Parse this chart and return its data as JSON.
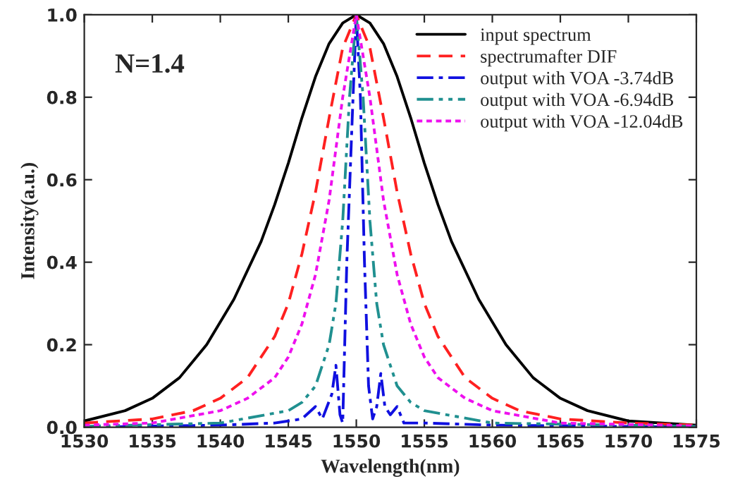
{
  "chart_data": {
    "type": "line",
    "xlabel": "Wavelength(nm)",
    "ylabel": "Intensity(a.u.)",
    "xlim": [
      1530,
      1575
    ],
    "xticks": [
      1530,
      1535,
      1540,
      1545,
      1550,
      1555,
      1560,
      1565,
      1570,
      1575
    ],
    "ylim": [
      0,
      1.0
    ],
    "yticks": [
      {
        "value": 0,
        "label": "0.0"
      },
      {
        "value": 0.2,
        "label": "0.2"
      },
      {
        "value": 0.4,
        "label": "0.4"
      },
      {
        "value": 0.6,
        "label": "0.6"
      },
      {
        "value": 0.8,
        "label": "0.8"
      },
      {
        "value": 1.0,
        "label": "1.0"
      }
    ],
    "grid": false,
    "legend": "top right",
    "marker": "none",
    "annotations": [
      "N=1.4"
    ],
    "series": [
      {
        "name": "input spectrum",
        "color": "#000000",
        "line_style": "solid",
        "x": [
          1530,
          1533,
          1535,
          1537,
          1539,
          1541,
          1543,
          1544,
          1545,
          1546,
          1547,
          1548,
          1549,
          1550,
          1551,
          1552,
          1553,
          1554,
          1555,
          1556,
          1557,
          1559,
          1561,
          1563,
          1565,
          1567,
          1570,
          1575
        ],
        "values": [
          0.015,
          0.04,
          0.07,
          0.12,
          0.2,
          0.31,
          0.45,
          0.54,
          0.64,
          0.75,
          0.85,
          0.93,
          0.98,
          1.0,
          0.98,
          0.93,
          0.85,
          0.75,
          0.64,
          0.54,
          0.45,
          0.31,
          0.2,
          0.12,
          0.07,
          0.04,
          0.015,
          0.005
        ]
      },
      {
        "name": "spectrumafter DIF",
        "color": "#ff2020",
        "line_style": "dashed",
        "x": [
          1530,
          1535,
          1538,
          1540,
          1542,
          1544,
          1545,
          1546,
          1547,
          1548,
          1549,
          1550,
          1551,
          1552,
          1553,
          1554,
          1555,
          1556,
          1558,
          1560,
          1562,
          1565,
          1570,
          1575
        ],
        "values": [
          0.01,
          0.02,
          0.04,
          0.07,
          0.12,
          0.22,
          0.3,
          0.42,
          0.57,
          0.75,
          0.92,
          1.0,
          0.92,
          0.75,
          0.57,
          0.42,
          0.3,
          0.22,
          0.12,
          0.07,
          0.04,
          0.02,
          0.01,
          0.005
        ]
      },
      {
        "name": "output with VOA -3.74dB",
        "color": "#1010e0",
        "line_style": "dashdot",
        "x": [
          1530,
          1540,
          1544,
          1546,
          1547,
          1547.5,
          1548.2,
          1548.5,
          1548.8,
          1549.0,
          1549.3,
          1549.7,
          1550,
          1550.3,
          1550.6,
          1550.9,
          1551.2,
          1551.5,
          1551.8,
          1552.1,
          1552.5,
          1553,
          1553.5,
          1555,
          1560,
          1575
        ],
        "values": [
          0,
          0.005,
          0.01,
          0.02,
          0.05,
          0.02,
          0.08,
          0.15,
          0.03,
          0.01,
          0.4,
          0.75,
          1.0,
          0.8,
          0.4,
          0.1,
          0.02,
          0.05,
          0.13,
          0.05,
          0.03,
          0.05,
          0.01,
          0.01,
          0.005,
          0
        ]
      },
      {
        "name": "output with VOA -6.94dB",
        "color": "#209090",
        "line_style": "dashdotdot",
        "x": [
          1530,
          1540,
          1545,
          1546,
          1547,
          1548,
          1548.5,
          1549,
          1549.5,
          1550,
          1550.5,
          1551,
          1551.5,
          1552,
          1553,
          1554,
          1555,
          1560,
          1575
        ],
        "values": [
          0.002,
          0.01,
          0.04,
          0.06,
          0.1,
          0.2,
          0.3,
          0.5,
          0.8,
          1.0,
          0.8,
          0.5,
          0.3,
          0.2,
          0.1,
          0.06,
          0.04,
          0.01,
          0.002
        ]
      },
      {
        "name": "output with VOA -12.04dB",
        "color": "#ee10ee",
        "line_style": "dotted",
        "x": [
          1530,
          1535,
          1540,
          1542,
          1544,
          1545,
          1546,
          1547,
          1548,
          1549,
          1550,
          1551,
          1552,
          1553,
          1554,
          1555,
          1556,
          1558,
          1560,
          1565,
          1575
        ],
        "values": [
          0.005,
          0.01,
          0.04,
          0.07,
          0.12,
          0.17,
          0.25,
          0.37,
          0.55,
          0.8,
          1.0,
          0.8,
          0.55,
          0.37,
          0.25,
          0.17,
          0.12,
          0.07,
          0.04,
          0.01,
          0.003
        ]
      }
    ]
  }
}
